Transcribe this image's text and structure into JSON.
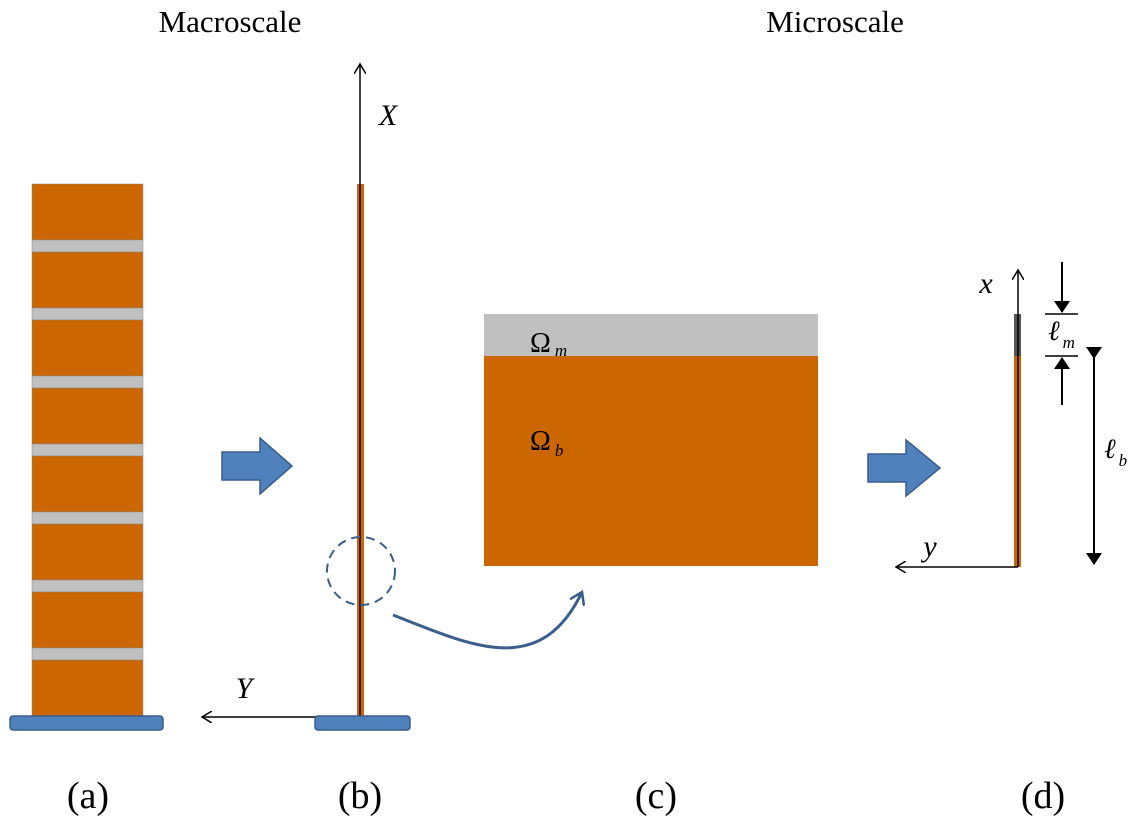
{
  "headers": {
    "left": "Macroscale",
    "right": "Microscale"
  },
  "panel_b": {
    "x_axis": "X",
    "y_axis": "Y"
  },
  "panel_c": {
    "matrix": {
      "symbol": "Ω",
      "subscript": "m"
    },
    "brick": {
      "symbol": "Ω",
      "subscript": "b"
    }
  },
  "panel_d": {
    "x_axis": "x",
    "y_axis": "y",
    "matrix_length": {
      "symbol": "ℓ",
      "subscript": "m"
    },
    "brick_length": {
      "symbol": "ℓ",
      "subscript": "b"
    }
  },
  "panel_labels": [
    "(a)",
    "(b)",
    "(c)",
    "(d)"
  ]
}
